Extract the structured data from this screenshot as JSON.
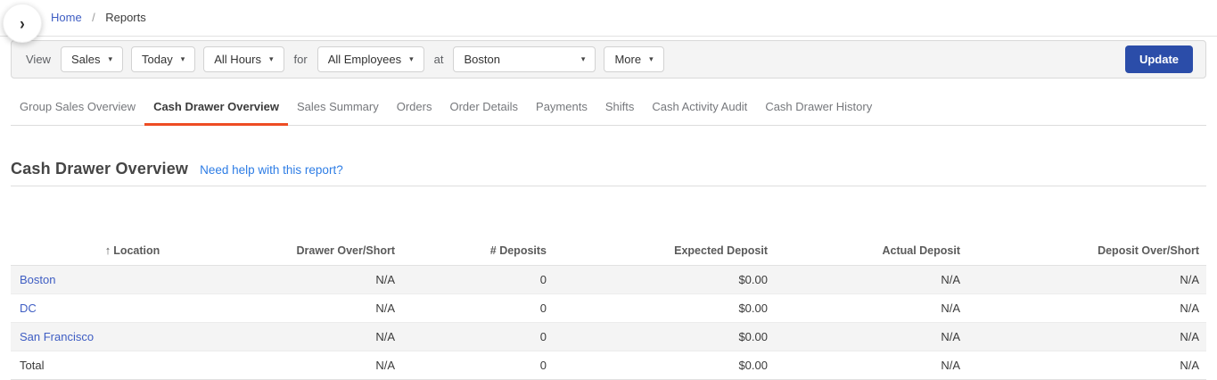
{
  "breadcrumb": {
    "home": "Home",
    "separator": "/",
    "current": "Reports"
  },
  "filters": {
    "view_label": "View",
    "report_type": "Sales",
    "date_range": "Today",
    "hours": "All Hours",
    "for_label": "for",
    "employees": "All Employees",
    "at_label": "at",
    "location": "Boston",
    "more_label": "More",
    "update_label": "Update"
  },
  "tabs": [
    {
      "label": "Group Sales Overview",
      "active": false
    },
    {
      "label": "Cash Drawer Overview",
      "active": true
    },
    {
      "label": "Sales Summary",
      "active": false
    },
    {
      "label": "Orders",
      "active": false
    },
    {
      "label": "Order Details",
      "active": false
    },
    {
      "label": "Payments",
      "active": false
    },
    {
      "label": "Shifts",
      "active": false
    },
    {
      "label": "Cash Activity Audit",
      "active": false
    },
    {
      "label": "Cash Drawer History",
      "active": false
    }
  ],
  "page": {
    "title": "Cash Drawer Overview",
    "help_link": "Need help with this report?"
  },
  "table": {
    "sort_icon": "↑",
    "columns": [
      "Location",
      "Drawer Over/Short",
      "# Deposits",
      "Expected Deposit",
      "Actual Deposit",
      "Deposit Over/Short"
    ],
    "rows": [
      {
        "location": "Boston",
        "is_link": true,
        "values": [
          "N/A",
          "0",
          "$0.00",
          "N/A",
          "N/A"
        ]
      },
      {
        "location": "DC",
        "is_link": true,
        "values": [
          "N/A",
          "0",
          "$0.00",
          "N/A",
          "N/A"
        ]
      },
      {
        "location": "San Francisco",
        "is_link": true,
        "values": [
          "N/A",
          "0",
          "$0.00",
          "N/A",
          "N/A"
        ]
      },
      {
        "location": "Total",
        "is_link": false,
        "values": [
          "N/A",
          "0",
          "$0.00",
          "N/A",
          "N/A"
        ]
      }
    ]
  },
  "colors": {
    "accent_tab_underline": "#ee4c23",
    "primary_button": "#2b4da9",
    "link_blue": "#3e5dc3",
    "help_link_blue": "#2e7de5",
    "filter_bar_bg": "#f4f4f4",
    "row_alt_bg": "#f4f4f4"
  }
}
